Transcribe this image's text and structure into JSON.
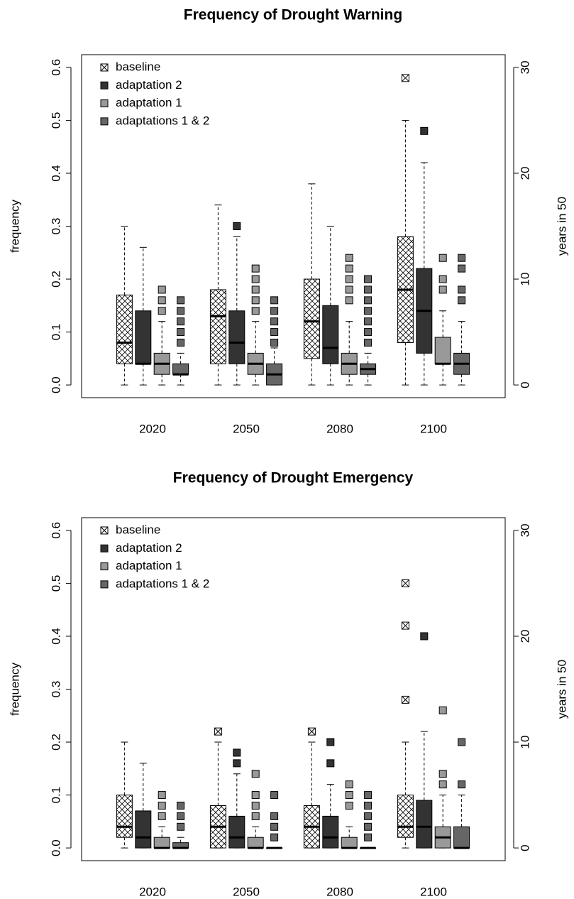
{
  "chart_data": [
    {
      "type": "box",
      "title": "Frequency of Drought Warning",
      "ylabel": "frequency",
      "y2label": "years in 50",
      "categories": [
        "2020",
        "2050",
        "2080",
        "2100"
      ],
      "ylim": [
        -0.024,
        0.624
      ],
      "yticks": [
        {
          "value": 0,
          "label": "0.0"
        },
        {
          "value": 0.1,
          "label": "0.1"
        },
        {
          "value": 0.2,
          "label": "0.2"
        },
        {
          "value": 0.3,
          "label": "0.3"
        },
        {
          "value": 0.4,
          "label": "0.4"
        },
        {
          "value": 0.5,
          "label": "0.5"
        },
        {
          "value": 0.6,
          "label": "0.6"
        }
      ],
      "y2lim": [
        -1.2,
        31.2
      ],
      "y2ticks": [
        0,
        10,
        20,
        30
      ],
      "legend": "top-left",
      "series": [
        {
          "name": "baseline",
          "color": "#ffffff",
          "pattern": "crosshatch",
          "min": [
            0,
            0,
            0,
            0
          ],
          "q1": [
            0.04,
            0.04,
            0.05,
            0.08
          ],
          "median": [
            0.08,
            0.13,
            0.12,
            0.18
          ],
          "q3": [
            0.17,
            0.18,
            0.2,
            0.28
          ],
          "max": [
            0.3,
            0.34,
            0.38,
            0.5
          ],
          "outliers": [
            [],
            [],
            [],
            [
              0.58
            ]
          ]
        },
        {
          "name": "adaptation 2",
          "color": "#333333",
          "min": [
            0,
            0,
            0,
            0
          ],
          "q1": [
            0.04,
            0.04,
            0.04,
            0.06
          ],
          "median": [
            0.04,
            0.08,
            0.07,
            0.14
          ],
          "q3": [
            0.14,
            0.14,
            0.15,
            0.22
          ],
          "max": [
            0.26,
            0.28,
            0.3,
            0.42
          ],
          "outliers": [
            [],
            [
              0.3
            ],
            [],
            [
              0.48
            ]
          ]
        },
        {
          "name": "adaptation 1",
          "color": "#999999",
          "min": [
            0,
            0,
            0,
            0
          ],
          "q1": [
            0.02,
            0.02,
            0.02,
            0.04
          ],
          "median": [
            0.04,
            0.04,
            0.04,
            0.04
          ],
          "q3": [
            0.06,
            0.06,
            0.06,
            0.09
          ],
          "max": [
            0.12,
            0.12,
            0.12,
            0.14
          ],
          "outliers": [
            [
              0.14,
              0.16,
              0.18
            ],
            [
              0.14,
              0.16,
              0.18,
              0.2,
              0.22
            ],
            [
              0.16,
              0.18,
              0.2,
              0.22,
              0.24
            ],
            [
              0.18,
              0.2,
              0.24
            ]
          ]
        },
        {
          "name": "adaptations 1 & 2",
          "color": "#666666",
          "min": [
            0,
            0,
            0,
            0
          ],
          "q1": [
            0.02,
            0,
            0.02,
            0.02
          ],
          "median": [
            0.02,
            0.02,
            0.03,
            0.04
          ],
          "q3": [
            0.04,
            0.04,
            0.04,
            0.06
          ],
          "max": [
            0.06,
            0.07,
            0.06,
            0.12
          ],
          "outliers": [
            [
              0.08,
              0.1,
              0.12,
              0.14,
              0.16
            ],
            [
              0.08,
              0.1,
              0.12,
              0.14,
              0.16
            ],
            [
              0.08,
              0.1,
              0.12,
              0.14,
              0.16,
              0.18,
              0.2
            ],
            [
              0.16,
              0.18,
              0.22,
              0.24
            ]
          ]
        }
      ]
    },
    {
      "type": "box",
      "title": "Frequency of Drought Emergency",
      "ylabel": "frequency",
      "y2label": "years in 50",
      "categories": [
        "2020",
        "2050",
        "2080",
        "2100"
      ],
      "ylim": [
        -0.024,
        0.624
      ],
      "yticks": [
        {
          "value": 0,
          "label": "0.0"
        },
        {
          "value": 0.1,
          "label": "0.1"
        },
        {
          "value": 0.2,
          "label": "0.2"
        },
        {
          "value": 0.3,
          "label": "0.3"
        },
        {
          "value": 0.4,
          "label": "0.4"
        },
        {
          "value": 0.5,
          "label": "0.5"
        },
        {
          "value": 0.6,
          "label": "0.6"
        }
      ],
      "y2lim": [
        -1.2,
        31.2
      ],
      "y2ticks": [
        0,
        10,
        20,
        30
      ],
      "legend": "top-left",
      "series": [
        {
          "name": "baseline",
          "color": "#ffffff",
          "pattern": "crosshatch",
          "min": [
            0,
            0,
            0,
            0
          ],
          "q1": [
            0.02,
            0,
            0,
            0.02
          ],
          "median": [
            0.04,
            0.04,
            0.04,
            0.04
          ],
          "q3": [
            0.1,
            0.08,
            0.08,
            0.1
          ],
          "max": [
            0.2,
            0.2,
            0.2,
            0.2
          ],
          "outliers": [
            [],
            [
              0.22
            ],
            [
              0.22
            ],
            [
              0.28,
              0.42,
              0.5
            ]
          ]
        },
        {
          "name": "adaptation 2",
          "color": "#333333",
          "min": [
            0,
            0,
            0,
            0
          ],
          "q1": [
            0,
            0,
            0,
            0
          ],
          "median": [
            0.02,
            0.02,
            0.02,
            0.04
          ],
          "q3": [
            0.07,
            0.06,
            0.06,
            0.09
          ],
          "max": [
            0.16,
            0.14,
            0.12,
            0.22
          ],
          "outliers": [
            [],
            [
              0.16,
              0.18
            ],
            [
              0.16,
              0.2
            ],
            [
              0.4
            ]
          ]
        },
        {
          "name": "adaptation 1",
          "color": "#999999",
          "min": [
            0,
            0,
            0,
            0
          ],
          "q1": [
            0,
            0,
            0,
            0
          ],
          "median": [
            0,
            0,
            0,
            0.02
          ],
          "q3": [
            0.02,
            0.02,
            0.02,
            0.04
          ],
          "max": [
            0.04,
            0.04,
            0.04,
            0.1
          ],
          "outliers": [
            [
              0.06,
              0.08,
              0.1
            ],
            [
              0.06,
              0.08,
              0.1,
              0.14
            ],
            [
              0.08,
              0.1,
              0.12
            ],
            [
              0.12,
              0.14,
              0.26
            ]
          ]
        },
        {
          "name": "adaptations 1 & 2",
          "color": "#666666",
          "min": [
            0,
            0,
            0,
            0
          ],
          "q1": [
            0,
            0,
            0,
            0
          ],
          "median": [
            0,
            0,
            0,
            0
          ],
          "q3": [
            0.01,
            0,
            0,
            0.04
          ],
          "max": [
            0.02,
            0,
            0,
            0.1
          ],
          "outliers": [
            [
              0.04,
              0.06,
              0.08
            ],
            [
              0.02,
              0.04,
              0.06,
              0.1
            ],
            [
              0.02,
              0.04,
              0.06,
              0.08,
              0.1
            ],
            [
              0.12,
              0.2
            ]
          ]
        }
      ]
    }
  ]
}
